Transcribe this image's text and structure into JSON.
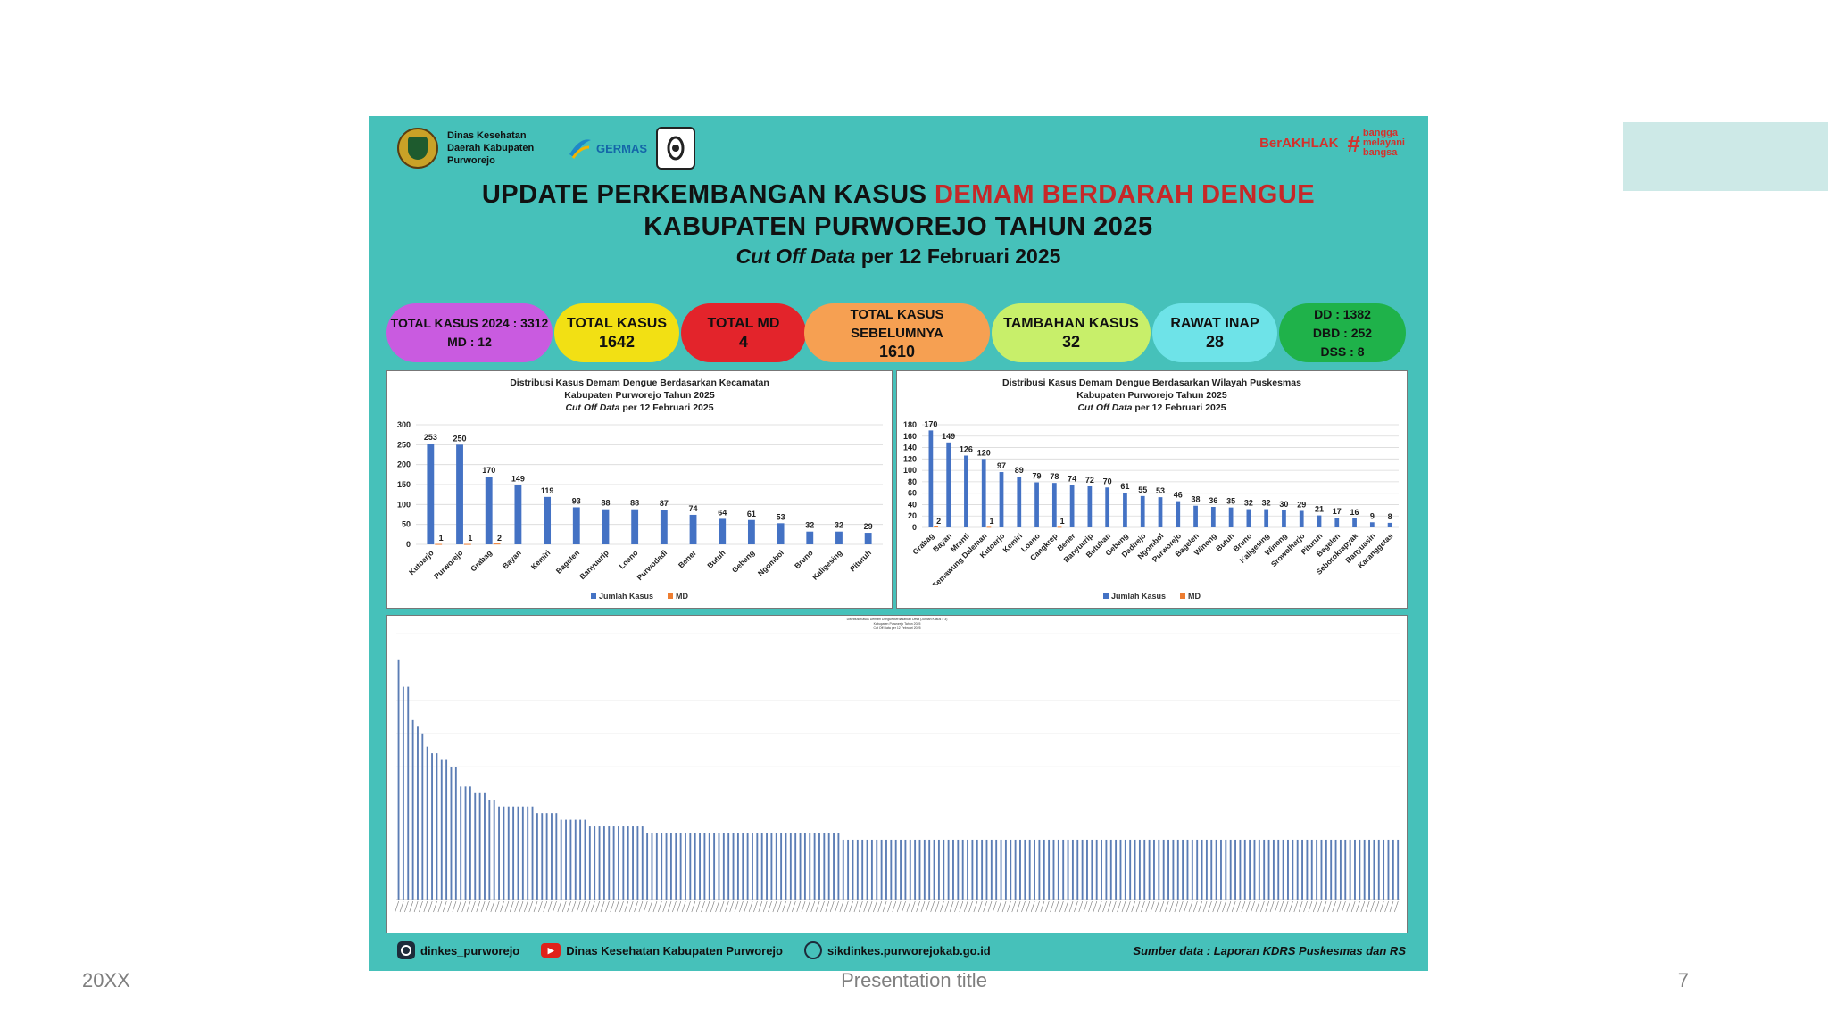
{
  "footer": {
    "date": "20XX",
    "title": "Presentation title",
    "page": "7"
  },
  "header": {
    "agency": "Dinas Kesehatan Daerah Kabupaten Purworejo",
    "germas": "GERMAS",
    "berakhlak": "BerAKHLAK",
    "bangga": [
      "bangga",
      "melayani",
      "bangsa"
    ],
    "title_line1_black": "UPDATE PERKEMBANGAN KASUS ",
    "title_line1_red": "DEMAM BERDARAH DENGUE",
    "title_line2": "KABUPATEN PURWOREJO TAHUN 2025",
    "title_line3_italic": "Cut Off Data",
    "title_line3_rest": " per 12 Februari 2025"
  },
  "stats": [
    {
      "label": "TOTAL KASUS  2024 : 3312",
      "value": "MD : 12",
      "color": "#c95be0"
    },
    {
      "label": "TOTAL KASUS",
      "value": "1642",
      "color": "#f2e014"
    },
    {
      "label": "TOTAL MD",
      "value": "4",
      "color": "#e3242b"
    },
    {
      "label": "TOTAL KASUS SEBELUMNYA",
      "value": "1610",
      "color": "#f6a052"
    },
    {
      "label": "TAMBAHAN KASUS",
      "value": "32",
      "color": "#c8ef6a"
    },
    {
      "label": "RAWAT INAP",
      "value": "28",
      "color": "#6ee3e8"
    },
    {
      "label": "DD : 1382",
      "value": "DBD : 252",
      "value2": "DSS : 8",
      "color": "#1fb24a"
    }
  ],
  "colors": {
    "bar": "#4472c4",
    "md": "#ed7d31",
    "background": "#46c1ba"
  },
  "chart_data": [
    {
      "type": "bar",
      "title": "Distribusi Kasus Demam Dengue Berdasarkan Kecamatan",
      "subtitle": "Kabupaten Purworejo Tahun 2025",
      "subtitle2_italic": "Cut Off Data",
      "subtitle2_rest": " per 12 Februari 2025",
      "categories": [
        "Kutoarjo",
        "Purworejo",
        "Grabag",
        "Bayan",
        "Kemiri",
        "Bagelen",
        "Banyuurip",
        "Loano",
        "Purwodadi",
        "Bener",
        "Butuh",
        "Gebang",
        "Ngombol",
        "Bruno",
        "Kaligesing",
        "Pituruh"
      ],
      "series": [
        {
          "name": "Jumlah Kasus",
          "values": [
            253,
            250,
            170,
            149,
            119,
            93,
            88,
            88,
            87,
            74,
            64,
            61,
            53,
            32,
            32,
            29
          ]
        },
        {
          "name": "MD",
          "values": [
            1,
            1,
            2,
            0,
            0,
            0,
            0,
            0,
            0,
            0,
            0,
            0,
            0,
            0,
            0,
            0
          ]
        }
      ],
      "yticks": [
        "0",
        "50",
        "100",
        "150",
        "200",
        "250",
        "300"
      ],
      "ylim": [
        0,
        300
      ],
      "grid": true,
      "legend": "bottom"
    },
    {
      "type": "bar",
      "title": "Distribusi Kasus Demam Dengue Berdasarkan Wilayah Puskesmas",
      "subtitle": "Kabupaten Purworejo Tahun 2025",
      "subtitle2_italic": "Cut Off Data",
      "subtitle2_rest": " per 12 Februari 2025",
      "categories": [
        "Grabag",
        "Bayan",
        "Mranti",
        "Semawung Daleman",
        "Kutoarjo",
        "Kemiri",
        "Loano",
        "Cangkrep",
        "Bener",
        "Banyuurip",
        "Butuhan",
        "Gebang",
        "Dadirejo",
        "Ngombol",
        "Purworejo",
        "Bagelen",
        "Winong",
        "Butuh",
        "Bruno",
        "Kaligesing",
        "Winong",
        "Srowolharjo",
        "Pituruh",
        "Begelen",
        "Seborokrapyak",
        "Banyuasin",
        "Karanggetas"
      ],
      "series": [
        {
          "name": "Jumlah Kasus",
          "values": [
            170,
            149,
            126,
            120,
            97,
            89,
            79,
            78,
            74,
            72,
            70,
            61,
            55,
            53,
            46,
            38,
            36,
            35,
            32,
            32,
            30,
            29,
            21,
            17,
            16,
            9,
            8
          ]
        },
        {
          "name": "MD",
          "values": [
            2,
            0,
            0,
            1,
            0,
            0,
            0,
            1,
            0,
            0,
            0,
            0,
            0,
            0,
            0,
            0,
            0,
            0,
            0,
            0,
            0,
            0,
            0,
            0,
            0,
            0,
            0
          ]
        }
      ],
      "yticks": [
        "0",
        "20",
        "40",
        "60",
        "80",
        "100",
        "120",
        "140",
        "160",
        "180"
      ],
      "ylim": [
        0,
        180
      ],
      "grid": true,
      "legend": "bottom"
    },
    {
      "type": "bar",
      "title": "Distribusi Kasus Demam Dengue Berdasarkan Desa (Jumlah Kasus > 3)",
      "subtitle": "Kabupaten Purworejo Tahun 2025",
      "subtitle2": "Cut Off Data per 12 Februari 2025",
      "series": [
        {
          "name": "Jumlah Kasus",
          "values": [
            36,
            32,
            32,
            27,
            26,
            25,
            23,
            22,
            22,
            21,
            21,
            20,
            20,
            17,
            17,
            17,
            16,
            16,
            16,
            15,
            15,
            14,
            14,
            14,
            14,
            14,
            14,
            14,
            14,
            13,
            13,
            13,
            13,
            13,
            12,
            12,
            12,
            12,
            12,
            12,
            11,
            11,
            11,
            11,
            11,
            11,
            11,
            11,
            11,
            11,
            11,
            11,
            10,
            10,
            10,
            10,
            10,
            10,
            10,
            10,
            10,
            10,
            10,
            10,
            10,
            10,
            10,
            10,
            10,
            10,
            10,
            10,
            10,
            10,
            10,
            10,
            10,
            10,
            10,
            10,
            10,
            10,
            10,
            10,
            10,
            10,
            10,
            10,
            10,
            10,
            10,
            10,
            10,
            9,
            9,
            9,
            9,
            9,
            9,
            9,
            9,
            9,
            9,
            9,
            9,
            9,
            9,
            9,
            9,
            9,
            9,
            9,
            9,
            9,
            9,
            9,
            9,
            9,
            9,
            9,
            9,
            9,
            9,
            9,
            9,
            9,
            9,
            9,
            9,
            9,
            9,
            9,
            9,
            9,
            9,
            9,
            9,
            9,
            9,
            9,
            9,
            9,
            9,
            9,
            9,
            9,
            9,
            9,
            9,
            9,
            9,
            9,
            9,
            9,
            9,
            9,
            9,
            9,
            9,
            9,
            9,
            9,
            9,
            9,
            9,
            9,
            9,
            9,
            9,
            9,
            9,
            9,
            9,
            9,
            9,
            9,
            9,
            9,
            9,
            9,
            9,
            9,
            9,
            9,
            9,
            9,
            9,
            9,
            9,
            9,
            9,
            9,
            9,
            9,
            9,
            9,
            9,
            9,
            9,
            9,
            9,
            9,
            9,
            9,
            9,
            9,
            9,
            9,
            9,
            9
          ]
        }
      ],
      "ylim": [
        0,
        40
      ],
      "grid": true,
      "legend": "bottom"
    }
  ],
  "social": {
    "instagram": "dinkes_purworejo",
    "youtube": "Dinas Kesehatan Kabupaten Purworejo",
    "website": "sikdinkes.purworejokab.go.id",
    "source": "Sumber data : Laporan KDRS Puskesmas dan RS"
  }
}
